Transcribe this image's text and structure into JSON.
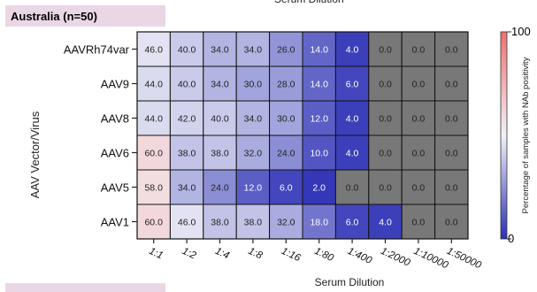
{
  "region": {
    "title": "Australia (n=50)"
  },
  "chart_data": {
    "type": "heatmap",
    "title": "Australia (n=50)",
    "xlabel": "Serum Dilution",
    "ylabel": "AAV Vector/Virus",
    "x_categories": [
      "1:1",
      "1:2",
      "1:4",
      "1:8",
      "1:16",
      "1:80",
      "1:400",
      "1:2000",
      "1:10000",
      "1:50000"
    ],
    "y_categories": [
      "AAVRh74var",
      "AAV9",
      "AAV8",
      "AAV6",
      "AAV5",
      "AAV1"
    ],
    "values": [
      [
        46.0,
        40.0,
        34.0,
        34.0,
        26.0,
        14.0,
        4.0,
        0.0,
        0.0,
        0.0
      ],
      [
        44.0,
        40.0,
        34.0,
        30.0,
        28.0,
        14.0,
        6.0,
        0.0,
        0.0,
        0.0
      ],
      [
        44.0,
        42.0,
        40.0,
        34.0,
        30.0,
        12.0,
        4.0,
        0.0,
        0.0,
        0.0
      ],
      [
        60.0,
        38.0,
        38.0,
        32.0,
        24.0,
        10.0,
        4.0,
        0.0,
        0.0,
        0.0
      ],
      [
        58.0,
        34.0,
        24.0,
        12.0,
        6.0,
        2.0,
        0.0,
        0.0,
        0.0,
        0.0
      ],
      [
        60.0,
        46.0,
        38.0,
        38.0,
        32.0,
        18.0,
        6.0,
        4.0,
        0.0,
        0.0
      ]
    ],
    "colorbar": {
      "label": "Percentage of samples with NAb positivity",
      "min": 0,
      "max": 100,
      "tick_labels": [
        "100",
        "0"
      ],
      "low_color": "#2b2fb5",
      "mid_color": "#f2f2f7",
      "high_color": "#f07070",
      "zero_color": "#787878"
    }
  }
}
